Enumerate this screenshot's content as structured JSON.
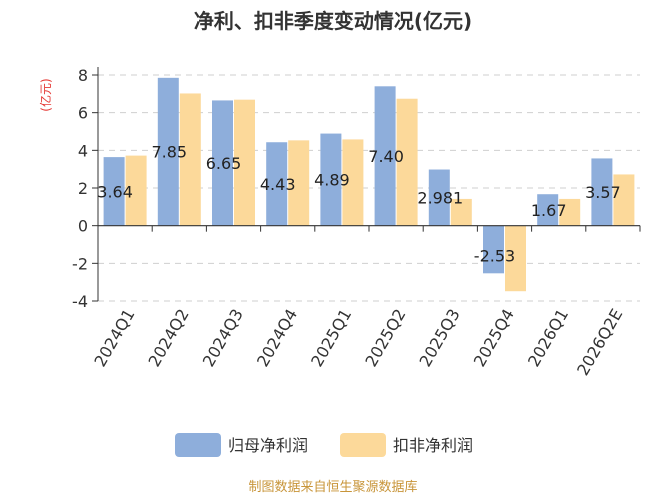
{
  "chart_data": {
    "type": "bar",
    "title": "净利、扣非季度变动情况(亿元)",
    "ylabel": "(亿元)",
    "categories": [
      "2024Q1",
      "2024Q2",
      "2024Q3",
      "2024Q4",
      "2025Q1",
      "2025Q2",
      "2025Q3",
      "2025Q4",
      "2026Q1",
      "2026Q2E"
    ],
    "series": [
      {
        "name": "归母净利润",
        "color": "#8eaedb",
        "values": [
          3.64,
          7.85,
          6.65,
          4.43,
          4.89,
          7.4,
          2.981,
          -2.53,
          1.67,
          3.57
        ],
        "labels": [
          "3.64",
          "7.85",
          "6.65",
          "4.43",
          "4.89",
          "7.40",
          "2.981",
          "-2.53",
          "1.67",
          "3.57"
        ]
      },
      {
        "name": "扣非净利润",
        "color": "#fcd99a",
        "values": [
          3.72,
          7.02,
          6.69,
          4.53,
          4.58,
          6.74,
          1.42,
          -3.48,
          1.42,
          2.72
        ]
      }
    ],
    "ylim": [
      -4,
      8
    ],
    "yticks": [
      -4,
      -2,
      0,
      2,
      4,
      6,
      8
    ],
    "grid": true,
    "legend": "bottom"
  },
  "source": "制图数据来自恒生聚源数据库"
}
